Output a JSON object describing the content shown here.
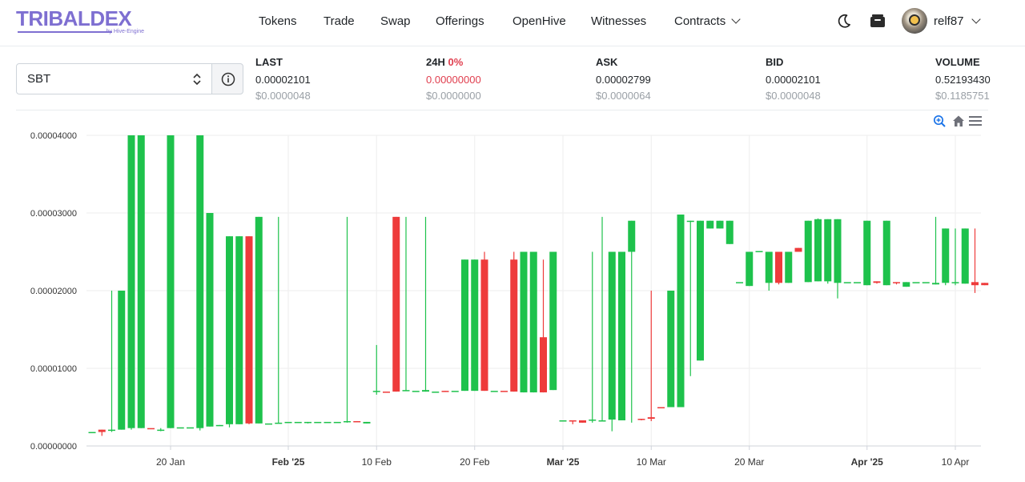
{
  "brand": {
    "name": "TRIBALDEX",
    "sub": "by Hive-Engine",
    "color": "#7e6fd1"
  },
  "nav": {
    "items": [
      {
        "label": "Tokens"
      },
      {
        "label": "Trade"
      },
      {
        "label": "Swap"
      },
      {
        "label": "Offerings"
      },
      {
        "label": "OpenHive"
      },
      {
        "label": "Witnesses"
      },
      {
        "label": "Contracts",
        "has_dropdown": true
      }
    ]
  },
  "header_icons": [
    "moon-icon",
    "wallet-icon"
  ],
  "user": {
    "name": "relf87"
  },
  "token_select": {
    "value": "SBT"
  },
  "stats": {
    "last": {
      "label": "LAST",
      "value": "0.00002101",
      "usd": "$0.0000048"
    },
    "change": {
      "label": "24H",
      "pct": "0%",
      "value": "0.00000000",
      "usd": "$0.0000000"
    },
    "ask": {
      "label": "ASK",
      "value": "0.00002799",
      "usd": "$0.0000064"
    },
    "bid": {
      "label": "BID",
      "value": "0.00002101",
      "usd": "$0.0000048"
    },
    "volume": {
      "label": "VOLUME",
      "value": "0.52193430",
      "usd": "$0.1185751"
    }
  },
  "colors": {
    "up": "#1ec24c",
    "down": "#ee3b3b",
    "accent": "#1a73e8",
    "negative_text": "#e03e4e"
  },
  "chart_data": {
    "type": "candlestick",
    "y_ticks": [
      "0.00000000",
      "0.00001000",
      "0.00002000",
      "0.00003000",
      "0.00004000"
    ],
    "ylim": [
      0,
      4e-05
    ],
    "x_ticks": [
      {
        "label": "20 Jan",
        "bold": false,
        "day": 0
      },
      {
        "label": "Feb '25",
        "bold": true,
        "day": 12
      },
      {
        "label": "10 Feb",
        "bold": false,
        "day": 21
      },
      {
        "label": "20 Feb",
        "bold": false,
        "day": 31
      },
      {
        "label": "Mar '25",
        "bold": true,
        "day": 40
      },
      {
        "label": "10 Mar",
        "bold": false,
        "day": 49
      },
      {
        "label": "20 Mar",
        "bold": false,
        "day": 59
      },
      {
        "label": "Apr '25",
        "bold": true,
        "day": 71
      },
      {
        "label": "10 Apr",
        "bold": false,
        "day": 80
      }
    ],
    "grid": true,
    "toolbar": [
      "zoom-icon",
      "home-icon",
      "menu-icon"
    ],
    "candles": [
      {
        "d": -8,
        "o": 1.7e-06,
        "h": 1.7e-06,
        "l": 1.7e-06,
        "c": 1.8e-06
      },
      {
        "d": -7,
        "o": 2.1e-06,
        "h": 2.1e-06,
        "l": 1.3e-06,
        "c": 1.8e-06
      },
      {
        "d": -6,
        "o": 2.1e-06,
        "h": 2e-05,
        "l": 1.8e-06,
        "c": 2.1e-06
      },
      {
        "d": -5,
        "o": 2.1e-06,
        "h": 2e-05,
        "l": 2.1e-06,
        "c": 2e-05
      },
      {
        "d": -4,
        "o": 2.3e-06,
        "h": 4e-05,
        "l": 2.1e-06,
        "c": 4e-05
      },
      {
        "d": -3,
        "o": 2.3e-06,
        "h": 4e-05,
        "l": 2.3e-06,
        "c": 4e-05
      },
      {
        "d": -2,
        "o": 2.3e-06,
        "h": 2.3e-06,
        "l": 2.3e-06,
        "c": 2.2e-06
      },
      {
        "d": -1,
        "o": 2.1e-06,
        "h": 2.3e-06,
        "l": 1.9e-06,
        "c": 2.1e-06
      },
      {
        "d": 0,
        "o": 2.3e-06,
        "h": 4e-05,
        "l": 2.3e-06,
        "c": 4e-05
      },
      {
        "d": 1,
        "o": 2.3e-06,
        "h": 2.3e-06,
        "l": 2.3e-06,
        "c": 2.4e-06
      },
      {
        "d": 2,
        "o": 2.4e-06,
        "h": 2.4e-06,
        "l": 2.4e-06,
        "c": 2.4e-06
      },
      {
        "d": 3,
        "o": 2.3e-06,
        "h": 4e-05,
        "l": 2e-06,
        "c": 4e-05
      },
      {
        "d": 4,
        "o": 2.5e-06,
        "h": 3e-05,
        "l": 2.5e-06,
        "c": 3e-05
      },
      {
        "d": 5,
        "o": 2.6e-06,
        "h": 2.7e-06,
        "l": 2.6e-06,
        "c": 2.7e-06
      },
      {
        "d": 6,
        "o": 2.8e-06,
        "h": 2.7e-05,
        "l": 2.4e-06,
        "c": 2.7e-05
      },
      {
        "d": 7,
        "o": 2.8e-06,
        "h": 2.7e-05,
        "l": 2.8e-06,
        "c": 2.7e-05
      },
      {
        "d": 8,
        "o": 2.7e-05,
        "h": 2.7e-05,
        "l": 2.8e-06,
        "c": 2.9e-06
      },
      {
        "d": 9,
        "o": 2.9e-06,
        "h": 2.95e-05,
        "l": 2.9e-06,
        "c": 2.95e-05
      },
      {
        "d": 10,
        "o": 2.9e-06,
        "h": 2.9e-06,
        "l": 2.9e-06,
        "c": 2.9e-06
      },
      {
        "d": 11,
        "o": 3e-06,
        "h": 2.95e-05,
        "l": 2.9e-06,
        "c": 3e-06
      },
      {
        "d": 12,
        "o": 3e-06,
        "h": 3e-06,
        "l": 3e-06,
        "c": 3.1e-06
      },
      {
        "d": 13,
        "o": 3.1e-06,
        "h": 3.1e-06,
        "l": 3.1e-06,
        "c": 3.1e-06
      },
      {
        "d": 14,
        "o": 3.1e-06,
        "h": 3.1e-06,
        "l": 2.9e-06,
        "c": 3.1e-06
      },
      {
        "d": 15,
        "o": 3.1e-06,
        "h": 3.1e-06,
        "l": 3.1e-06,
        "c": 3.1e-06
      },
      {
        "d": 16,
        "o": 3.1e-06,
        "h": 3.1e-06,
        "l": 3.1e-06,
        "c": 3.1e-06
      },
      {
        "d": 17,
        "o": 3.1e-06,
        "h": 3.1e-06,
        "l": 3.1e-06,
        "c": 3.1e-06
      },
      {
        "d": 18,
        "o": 3.1e-06,
        "h": 2.95e-05,
        "l": 3e-06,
        "c": 3.2e-06
      },
      {
        "d": 19,
        "o": 3.2e-06,
        "h": 3.2e-06,
        "l": 3.1e-06,
        "c": 3.1e-06
      },
      {
        "d": 20,
        "o": 2.9e-06,
        "h": 3.1e-06,
        "l": 2.9e-06,
        "c": 3.1e-06
      },
      {
        "d": 21,
        "o": 7e-06,
        "h": 1.3e-05,
        "l": 6.6e-06,
        "c": 7.1e-06
      },
      {
        "d": 22,
        "o": 7e-06,
        "h": 7e-06,
        "l": 7e-06,
        "c": 6.9e-06
      },
      {
        "d": 23,
        "o": 2.95e-05,
        "h": 2.95e-05,
        "l": 7e-06,
        "c": 7e-06
      },
      {
        "d": 24,
        "o": 7.1e-06,
        "h": 2.95e-05,
        "l": 7.1e-06,
        "c": 7.2e-06
      },
      {
        "d": 25,
        "o": 7.1e-06,
        "h": 7.1e-06,
        "l": 7.1e-06,
        "c": 7.1e-06
      },
      {
        "d": 26,
        "o": 7e-06,
        "h": 2.95e-05,
        "l": 7e-06,
        "c": 7.2e-06
      },
      {
        "d": 27,
        "o": 7e-06,
        "h": 7e-06,
        "l": 7e-06,
        "c": 7e-06
      },
      {
        "d": 28,
        "o": 7.1e-06,
        "h": 7.1e-06,
        "l": 7e-06,
        "c": 7e-06
      },
      {
        "d": 29,
        "o": 7e-06,
        "h": 7e-06,
        "l": 7e-06,
        "c": 7.1e-06
      },
      {
        "d": 30,
        "o": 7.1e-06,
        "h": 2.4e-05,
        "l": 7.1e-06,
        "c": 2.4e-05
      },
      {
        "d": 31,
        "o": 7.1e-06,
        "h": 2.4e-05,
        "l": 7.1e-06,
        "c": 2.4e-05
      },
      {
        "d": 32,
        "o": 2.4e-05,
        "h": 2.5e-05,
        "l": 7.1e-06,
        "c": 7.1e-06
      },
      {
        "d": 33,
        "o": 7.1e-06,
        "h": 7.1e-06,
        "l": 7.1e-06,
        "c": 7.1e-06
      },
      {
        "d": 34,
        "o": 7.1e-06,
        "h": 7.1e-06,
        "l": 7.1e-06,
        "c": 7e-06
      },
      {
        "d": 35,
        "o": 2.4e-05,
        "h": 2.5e-05,
        "l": 7e-06,
        "c": 7e-06
      },
      {
        "d": 36,
        "o": 6.9e-06,
        "h": 2.5e-05,
        "l": 6.9e-06,
        "c": 2.5e-05
      },
      {
        "d": 37,
        "o": 6.9e-06,
        "h": 2.5e-05,
        "l": 6.9e-06,
        "c": 2.5e-05
      },
      {
        "d": 38,
        "o": 1.4e-05,
        "h": 2.4e-05,
        "l": 6.9e-06,
        "c": 6.9e-06
      },
      {
        "d": 39,
        "o": 7.2e-06,
        "h": 2.5e-05,
        "l": 7.2e-06,
        "c": 2.5e-05
      },
      {
        "d": 40,
        "o": 3.3e-06,
        "h": 3.3e-06,
        "l": 3.3e-06,
        "c": 3.3e-06
      },
      {
        "d": 41,
        "o": 3.3e-06,
        "h": 3.3e-06,
        "l": 2.8e-06,
        "c": 3.2e-06
      },
      {
        "d": 42,
        "o": 3.3e-06,
        "h": 3.3e-06,
        "l": 3e-06,
        "c": 3e-06
      },
      {
        "d": 43,
        "o": 3.3e-06,
        "h": 2.5e-05,
        "l": 3e-06,
        "c": 3.4e-06
      },
      {
        "d": 44,
        "o": 3.3e-06,
        "h": 2.95e-05,
        "l": 3.3e-06,
        "c": 3.3e-06
      },
      {
        "d": 45,
        "o": 3.4e-06,
        "h": 2.5e-05,
        "l": 1.9e-06,
        "c": 2.5e-05
      },
      {
        "d": 46,
        "o": 3.3e-06,
        "h": 2.5e-05,
        "l": 3.3e-06,
        "c": 2.5e-05
      },
      {
        "d": 47,
        "o": 2.5e-05,
        "h": 2.9e-05,
        "l": 3e-06,
        "c": 2.9e-05
      },
      {
        "d": 48,
        "o": 3.5e-06,
        "h": 3.5e-06,
        "l": 3.3e-06,
        "c": 3.4e-06
      },
      {
        "d": 49,
        "o": 3.7e-06,
        "h": 2e-05,
        "l": 3.2e-06,
        "c": 3.5e-06
      },
      {
        "d": 50,
        "o": 5e-06,
        "h": 5e-06,
        "l": 5e-06,
        "c": 4.9e-06
      },
      {
        "d": 51,
        "o": 5e-06,
        "h": 2e-05,
        "l": 5e-06,
        "c": 2e-05
      },
      {
        "d": 52,
        "o": 5e-06,
        "h": 2.98e-05,
        "l": 5e-06,
        "c": 2.98e-05
      },
      {
        "d": 53,
        "o": 2.9e-05,
        "h": 2.9e-05,
        "l": 9e-06,
        "c": 2.9e-05
      },
      {
        "d": 54,
        "o": 1.1e-05,
        "h": 2.9e-05,
        "l": 1.1e-05,
        "c": 2.9e-05
      },
      {
        "d": 55,
        "o": 2.8e-05,
        "h": 2.9e-05,
        "l": 2.8e-05,
        "c": 2.9e-05
      },
      {
        "d": 56,
        "o": 2.8e-05,
        "h": 2.9e-05,
        "l": 2.8e-05,
        "c": 2.9e-05
      },
      {
        "d": 57,
        "o": 2.6e-05,
        "h": 2.9e-05,
        "l": 2.6e-05,
        "c": 2.9e-05
      },
      {
        "d": 58,
        "o": 2.1e-05,
        "h": 2.1e-05,
        "l": 2.1e-05,
        "c": 2.11e-05
      },
      {
        "d": 59,
        "o": 2.06e-05,
        "h": 2.5e-05,
        "l": 2.06e-05,
        "c": 2.5e-05
      },
      {
        "d": 60,
        "o": 2.5e-05,
        "h": 2.5e-05,
        "l": 2.5e-05,
        "c": 2.51e-05
      },
      {
        "d": 61,
        "o": 2.1e-05,
        "h": 2.5e-05,
        "l": 2e-05,
        "c": 2.5e-05
      },
      {
        "d": 62,
        "o": 2.5e-05,
        "h": 2.5e-05,
        "l": 2.08e-05,
        "c": 2.1e-05
      },
      {
        "d": 63,
        "o": 2.1e-05,
        "h": 2.5e-05,
        "l": 2.1e-05,
        "c": 2.5e-05
      },
      {
        "d": 64,
        "o": 2.55e-05,
        "h": 2.55e-05,
        "l": 2.5e-05,
        "c": 2.5e-05
      },
      {
        "d": 65,
        "o": 2.11e-05,
        "h": 2.9e-05,
        "l": 2.11e-05,
        "c": 2.9e-05
      },
      {
        "d": 66,
        "o": 2.12e-05,
        "h": 2.93e-05,
        "l": 2.12e-05,
        "c": 2.92e-05
      },
      {
        "d": 67,
        "o": 2.12e-05,
        "h": 2.92e-05,
        "l": 2.09e-05,
        "c": 2.92e-05
      },
      {
        "d": 68,
        "o": 2.1e-05,
        "h": 2.92e-05,
        "l": 1.9e-05,
        "c": 2.92e-05
      },
      {
        "d": 69,
        "o": 2.1e-05,
        "h": 2.1e-05,
        "l": 2.1e-05,
        "c": 2.11e-05
      },
      {
        "d": 70,
        "o": 2.1e-05,
        "h": 2.1e-05,
        "l": 2.1e-05,
        "c": 2.11e-05
      },
      {
        "d": 71,
        "o": 2.07e-05,
        "h": 2.9e-05,
        "l": 2.07e-05,
        "c": 2.9e-05
      },
      {
        "d": 72,
        "o": 2.12e-05,
        "h": 2.12e-05,
        "l": 2.09e-05,
        "c": 2.1e-05
      },
      {
        "d": 73,
        "o": 2.07e-05,
        "h": 2.9e-05,
        "l": 2.07e-05,
        "c": 2.9e-05
      },
      {
        "d": 74,
        "o": 2.11e-05,
        "h": 2.11e-05,
        "l": 2.08e-05,
        "c": 2.1e-05
      },
      {
        "d": 75,
        "o": 2.05e-05,
        "h": 2.11e-05,
        "l": 2.05e-05,
        "c": 2.11e-05
      },
      {
        "d": 76,
        "o": 2.11e-05,
        "h": 2.11e-05,
        "l": 2.11e-05,
        "c": 2.11e-05
      },
      {
        "d": 77,
        "o": 2.1e-05,
        "h": 2.1e-05,
        "l": 2.1e-05,
        "c": 2.11e-05
      },
      {
        "d": 78,
        "o": 2.08e-05,
        "h": 2.95e-05,
        "l": 2.08e-05,
        "c": 2.1e-05
      },
      {
        "d": 79,
        "o": 2.1e-05,
        "h": 2.8e-05,
        "l": 2.07e-05,
        "c": 2.8e-05
      },
      {
        "d": 80,
        "o": 2.11e-05,
        "h": 2.8e-05,
        "l": 2.07e-05,
        "c": 2.11e-05
      },
      {
        "d": 81,
        "o": 2.09e-05,
        "h": 2.8e-05,
        "l": 2.09e-05,
        "c": 2.8e-05
      },
      {
        "d": 82,
        "o": 2.11e-05,
        "h": 2.8e-05,
        "l": 1.97e-05,
        "c": 2.07e-05
      },
      {
        "d": 83,
        "o": 2.1e-05,
        "h": 2.1e-05,
        "l": 2.07e-05,
        "c": 2.07e-05
      }
    ]
  }
}
